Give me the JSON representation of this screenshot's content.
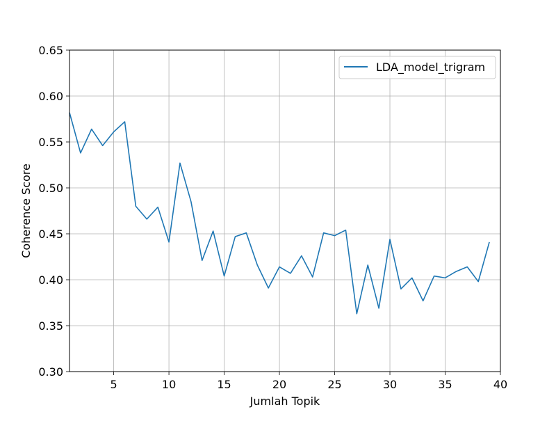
{
  "chart_data": {
    "type": "line",
    "title": "",
    "xlabel": "Jumlah Topik",
    "ylabel": "Coherence Score",
    "xlim": [
      1,
      40
    ],
    "ylim": [
      0.3,
      0.65
    ],
    "xticks": [
      5,
      10,
      15,
      20,
      25,
      30,
      35,
      40
    ],
    "xtick_labels": [
      "5",
      "10",
      "15",
      "20",
      "25",
      "30",
      "35",
      "40"
    ],
    "yticks": [
      0.3,
      0.35,
      0.4,
      0.45,
      0.5,
      0.55,
      0.6,
      0.65
    ],
    "ytick_labels": [
      "0.30",
      "0.35",
      "0.40",
      "0.45",
      "0.50",
      "0.55",
      "0.60",
      "0.65"
    ],
    "grid": true,
    "legend_position": "top-right",
    "series": [
      {
        "name": "LDA_model_trigram",
        "color": "#1f77b4",
        "x": [
          1,
          2,
          3,
          4,
          5,
          6,
          7,
          8,
          9,
          10,
          11,
          12,
          13,
          14,
          15,
          16,
          17,
          18,
          19,
          20,
          21,
          22,
          23,
          24,
          25,
          26,
          27,
          28,
          29,
          30,
          31,
          32,
          33,
          34,
          35,
          36,
          37,
          38,
          39
        ],
        "values": [
          0.582,
          0.538,
          0.564,
          0.546,
          0.561,
          0.572,
          0.48,
          0.466,
          0.479,
          0.441,
          0.527,
          0.485,
          0.421,
          0.453,
          0.404,
          0.447,
          0.451,
          0.416,
          0.391,
          0.414,
          0.407,
          0.426,
          0.403,
          0.451,
          0.448,
          0.454,
          0.363,
          0.416,
          0.369,
          0.444,
          0.39,
          0.402,
          0.377,
          0.404,
          0.402,
          0.409,
          0.414,
          0.398,
          0.441
        ]
      }
    ]
  },
  "colors": {
    "grid": "#b0b0b0",
    "axis": "#000000",
    "legend_border": "#cccccc"
  }
}
